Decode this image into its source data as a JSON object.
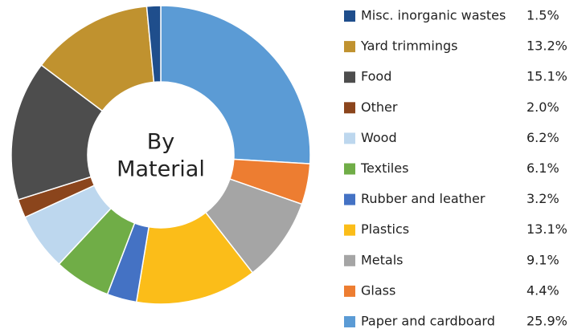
{
  "chart_data": {
    "type": "donut",
    "center_label": [
      "By",
      "Material"
    ],
    "categories": [
      "Misc. inorganic wastes",
      "Yard trimmings",
      "Food",
      "Other",
      "Wood",
      "Textiles",
      "Rubber and leather",
      "Plastics",
      "Metals",
      "Glass",
      "Paper and cardboard"
    ],
    "values": [
      1.5,
      13.2,
      15.1,
      2.0,
      6.2,
      6.1,
      3.2,
      13.1,
      9.1,
      4.4,
      25.9
    ],
    "value_labels": [
      "1.5%",
      "13.2%",
      "15.1%",
      "2.0%",
      "6.2%",
      "6.1%",
      "3.2%",
      "13.1%",
      "9.1%",
      "4.4%",
      "25.9%"
    ],
    "colors": [
      "#1f4e8c",
      "#c0922f",
      "#4d4d4d",
      "#8b451c",
      "#bdd7ee",
      "#70ad47",
      "#4472c4",
      "#fbbd19",
      "#a5a5a5",
      "#ed7d31",
      "#5b9bd5"
    ],
    "legend": "right"
  }
}
